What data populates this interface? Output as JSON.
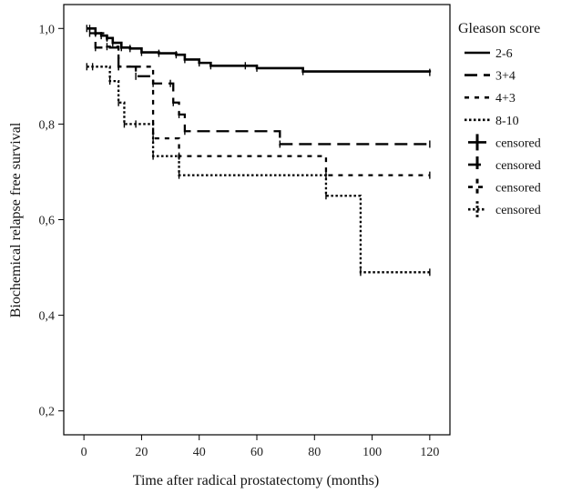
{
  "chart_data": {
    "type": "line",
    "xlabel": "Time after radical prostatectomy (months)",
    "ylabel": "Biochemical relapse free survival",
    "xlim": [
      -7,
      127
    ],
    "ylim": [
      0.15,
      1.05
    ],
    "xticks": [
      0,
      20,
      40,
      60,
      80,
      100,
      120
    ],
    "xtick_labels": [
      "0",
      "20",
      "40",
      "60",
      "80",
      "100",
      "120"
    ],
    "yticks": [
      0.2,
      0.4,
      0.6,
      0.8,
      1.0
    ],
    "ytick_labels": [
      "0,2",
      "0,4",
      "0,6",
      "0,8",
      "1,0"
    ],
    "grid": false,
    "legend_title": "Gleason score",
    "legend_position": "right",
    "series": [
      {
        "name": "2-6",
        "style": "solid",
        "x": [
          1,
          4,
          6,
          8,
          10,
          13,
          16,
          20,
          26,
          32,
          35,
          40,
          44,
          56,
          60,
          76,
          120
        ],
        "y": [
          1.0,
          0.99,
          0.985,
          0.98,
          0.97,
          0.96,
          0.958,
          0.95,
          0.948,
          0.945,
          0.935,
          0.928,
          0.922,
          0.922,
          0.917,
          0.91,
          0.908
        ]
      },
      {
        "name": "3+4",
        "style": "long-dash",
        "x": [
          2,
          4,
          12,
          18,
          24,
          30,
          31,
          33,
          35,
          68,
          120
        ],
        "y": [
          1.0,
          0.96,
          0.92,
          0.9,
          0.885,
          0.885,
          0.845,
          0.82,
          0.785,
          0.758,
          0.758
        ]
      },
      {
        "name": "4+3",
        "style": "short-dash",
        "x": [
          2,
          8,
          12,
          24,
          33,
          84,
          120
        ],
        "y": [
          0.99,
          0.962,
          0.92,
          0.77,
          0.733,
          0.693,
          0.693
        ]
      },
      {
        "name": "8-10",
        "style": "dotted",
        "x": [
          1,
          3,
          9,
          12,
          14,
          18,
          24,
          33,
          84,
          96,
          120
        ],
        "y": [
          0.92,
          0.92,
          0.89,
          0.845,
          0.8,
          0.8,
          0.733,
          0.693,
          0.65,
          0.49,
          0.49
        ]
      }
    ],
    "censored_markers": [
      {
        "series": 0,
        "style": "solid"
      },
      {
        "series": 1,
        "style": "long-dash"
      },
      {
        "series": 2,
        "style": "short-dash"
      },
      {
        "series": 3,
        "style": "dotted"
      }
    ],
    "legend_entries": [
      {
        "label": "2-6",
        "style": "solid",
        "kind": "line"
      },
      {
        "label": "3+4",
        "style": "long-dash",
        "kind": "line"
      },
      {
        "label": "4+3",
        "style": "short-dash",
        "kind": "line"
      },
      {
        "label": "8-10",
        "style": "dotted",
        "kind": "line"
      },
      {
        "label": "censored",
        "style": "solid",
        "kind": "cross"
      },
      {
        "label": "censored",
        "style": "long-dash",
        "kind": "cross"
      },
      {
        "label": "censored",
        "style": "short-dash",
        "kind": "cross"
      },
      {
        "label": "censored",
        "style": "dotted",
        "kind": "cross"
      }
    ]
  }
}
